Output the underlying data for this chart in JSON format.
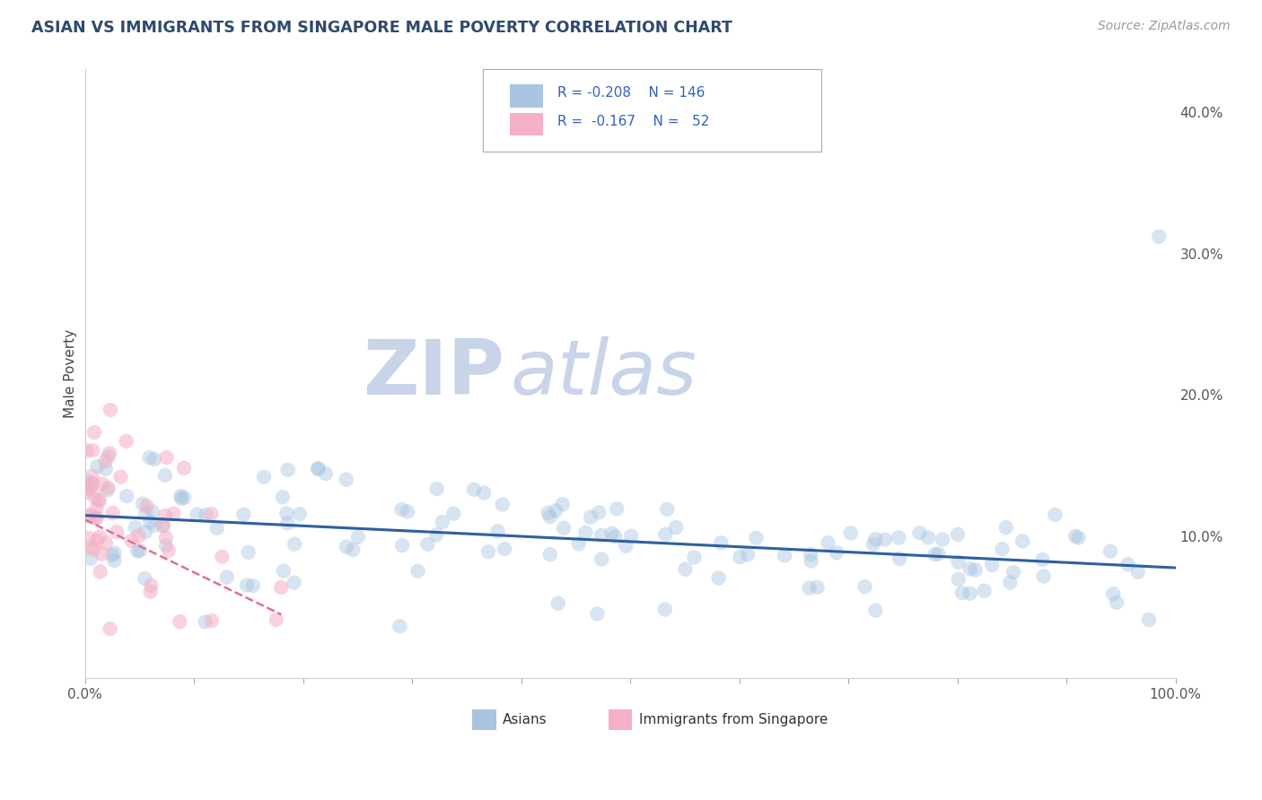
{
  "title": "ASIAN VS IMMIGRANTS FROM SINGAPORE MALE POVERTY CORRELATION CHART",
  "source": "Source: ZipAtlas.com",
  "ylabel": "Male Poverty",
  "xlim": [
    0.0,
    100.0
  ],
  "ylim": [
    0.0,
    43.0
  ],
  "asian_R": -0.208,
  "asian_N": 146,
  "singapore_R": -0.167,
  "singapore_N": 52,
  "asian_color": "#a8c4e0",
  "singapore_color": "#f4b0c5",
  "asian_line_color": "#2e5fa3",
  "singapore_line_color": "#e07090",
  "background_color": "#ffffff",
  "grid_color": "#cccccc",
  "title_color": "#2e4a6e",
  "source_color": "#999999",
  "asian_line_y_start": 11.5,
  "asian_line_y_end": 7.8,
  "singapore_line_y_start": 11.2,
  "singapore_line_y_end": 4.5,
  "watermark_zip": "ZIP",
  "watermark_atlas": "atlas",
  "watermark_color": "#c8d4e8",
  "marker_size": 140,
  "marker_alpha_asian": 0.45,
  "marker_alpha_singapore": 0.55,
  "legend_R_color": "#3060c0",
  "legend_N_color": "#3060c0"
}
